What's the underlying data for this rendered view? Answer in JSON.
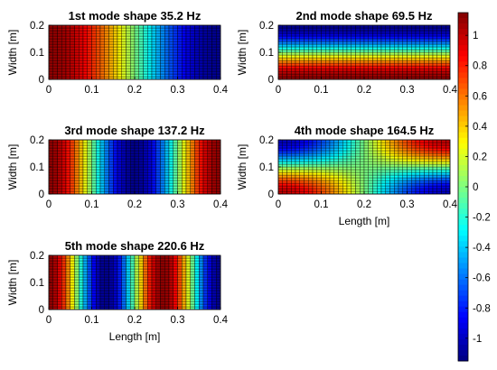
{
  "chart_data": [
    {
      "type": "heatmap",
      "title": "1st mode shape 35.2 Hz",
      "frequency_hz": 35.2,
      "xlabel": "",
      "ylabel": "Width [m]",
      "xlim": [
        0,
        0.4
      ],
      "ylim": [
        0,
        0.2
      ],
      "xticks": [
        "0",
        "0.1",
        "0.2",
        "0.3",
        "0.4"
      ],
      "yticks": [
        "0",
        "0.1",
        "0.2"
      ],
      "grid": true,
      "mode": [
        1,
        0
      ]
    },
    {
      "type": "heatmap",
      "title": "2nd mode shape 69.5 Hz",
      "frequency_hz": 69.5,
      "xlabel": "",
      "ylabel": "Width [m]",
      "xlim": [
        0,
        0.4
      ],
      "ylim": [
        0,
        0.2
      ],
      "xticks": [
        "0",
        "0.1",
        "0.2",
        "0.3",
        "0.4"
      ],
      "yticks": [
        "0",
        "0.1",
        "0.2"
      ],
      "grid": true,
      "mode": [
        0,
        1
      ]
    },
    {
      "type": "heatmap",
      "title": "3rd mode shape 137.2 Hz",
      "frequency_hz": 137.2,
      "xlabel": "",
      "ylabel": "Width [m]",
      "xlim": [
        0,
        0.4
      ],
      "ylim": [
        0,
        0.2
      ],
      "xticks": [
        "0",
        "0.1",
        "0.2",
        "0.3",
        "0.4"
      ],
      "yticks": [
        "0",
        "0.1",
        "0.2"
      ],
      "grid": true,
      "mode": [
        2,
        0
      ]
    },
    {
      "type": "heatmap",
      "title": "4th mode shape 164.5 Hz",
      "frequency_hz": 164.5,
      "xlabel": "Length [m]",
      "ylabel": "Width [m]",
      "xlim": [
        0,
        0.4
      ],
      "ylim": [
        0,
        0.2
      ],
      "xticks": [
        "0",
        "0.1",
        "0.2",
        "0.3",
        "0.4"
      ],
      "yticks": [
        "0",
        "0.1",
        "0.2"
      ],
      "grid": true,
      "mode": [
        1,
        1
      ]
    },
    {
      "type": "heatmap",
      "title": "5th mode shape 220.6 Hz",
      "frequency_hz": 220.6,
      "xlabel": "Length [m]",
      "ylabel": "Width [m]",
      "xlim": [
        0,
        0.4
      ],
      "ylim": [
        0,
        0.2
      ],
      "xticks": [
        "0",
        "0.1",
        "0.2",
        "0.3",
        "0.4"
      ],
      "yticks": [
        "0",
        "0.1",
        "0.2"
      ],
      "grid": true,
      "mode": [
        3,
        0
      ]
    }
  ],
  "colorbar": {
    "colormap": "jet",
    "range": [
      -1.15,
      1.15
    ],
    "ticks": [
      1,
      0.8,
      0.6,
      0.4,
      0.2,
      0,
      -0.2,
      -0.4,
      -0.6,
      -0.8,
      -1
    ],
    "tick_labels": [
      "1",
      "0.8",
      "0.6",
      "0.4",
      "0.2",
      "0",
      "-0.2",
      "-0.4",
      "-0.6",
      "-0.8",
      "-1"
    ]
  },
  "grid_resolution": {
    "nx": 40,
    "ny": 20
  },
  "colors": {
    "grid_line": "#000000",
    "axis": "#000000"
  }
}
